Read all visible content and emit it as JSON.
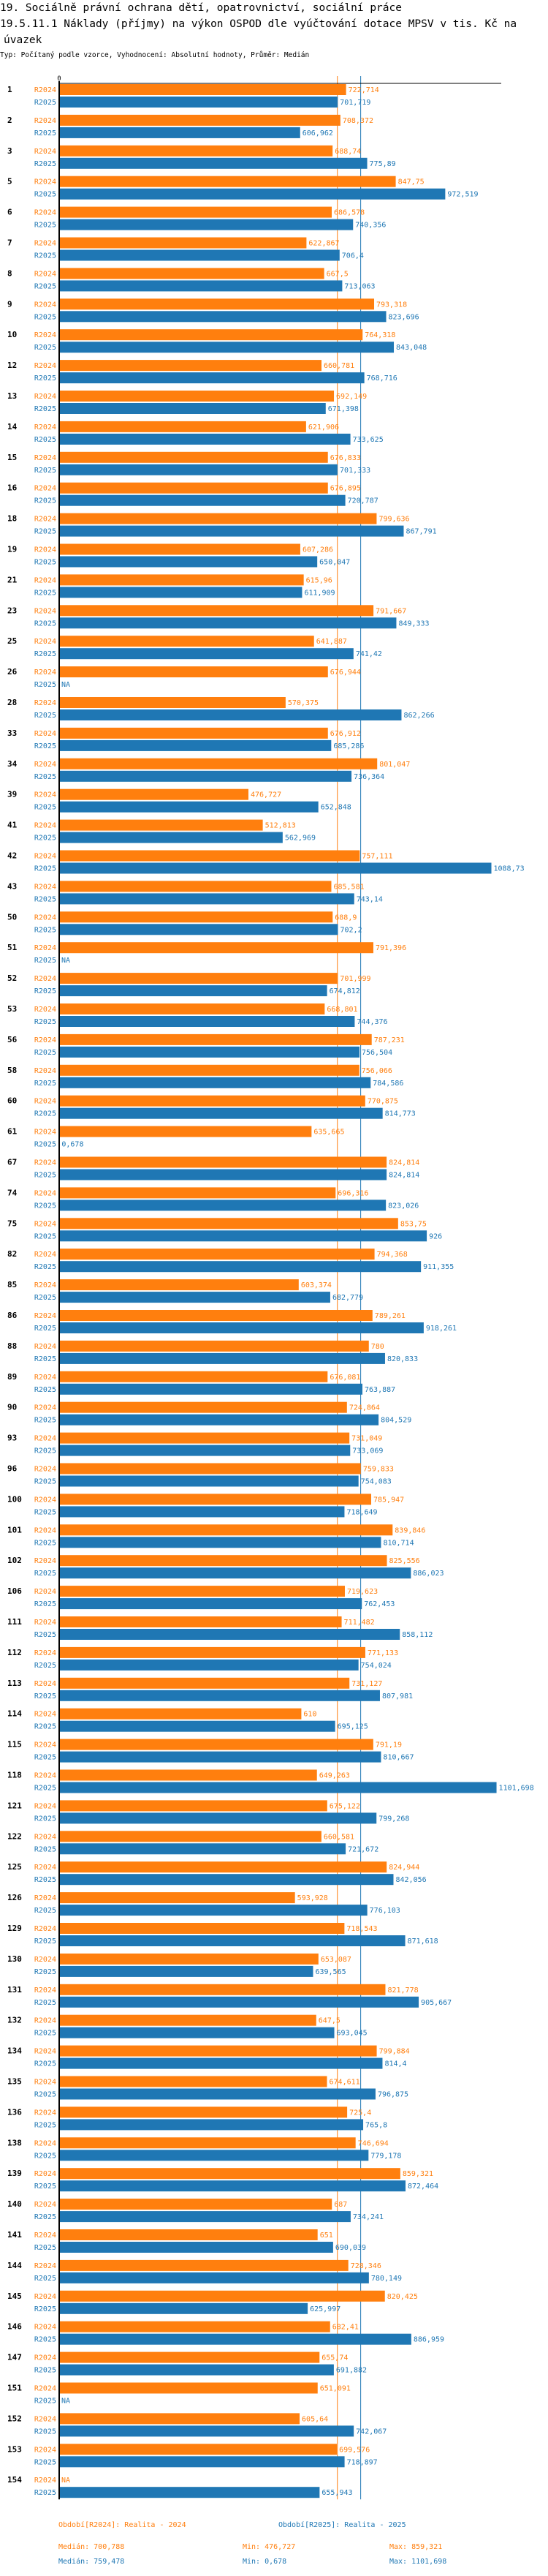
{
  "header": {
    "section_title": "19. Sociálně právní ochrana dětí, opatrovnictví, sociální práce",
    "indicator_title_line1": "19.5.11.1 Náklady (příjmy) na výkon OSPOD dle vyúčtování dotace MPSV v tis. Kč na",
    "indicator_title_line2": "úvazek",
    "subtitle": "Typ: Počítaný podle vzorce, Vyhodnocení: Absolutní hodnoty, Průměr: Medián"
  },
  "chart_data": {
    "type": "bar",
    "orientation": "horizontal",
    "title": "19.5.11.1 Náklady (příjmy) na výkon OSPOD dle vyúčtování dotace MPSV v tis. Kč na úvazek",
    "xlabel": "",
    "ylabel": "",
    "xlim": [
      0,
      1101.698
    ],
    "x_tick_labels": [
      "0"
    ],
    "grid": false,
    "decimal_separator": ",",
    "colors": {
      "R2024": "#ff7f0e",
      "R2025": "#1f77b4"
    },
    "categories": [
      "1",
      "2",
      "3",
      "5",
      "6",
      "7",
      "8",
      "9",
      "10",
      "12",
      "13",
      "14",
      "15",
      "16",
      "18",
      "19",
      "21",
      "23",
      "25",
      "26",
      "28",
      "33",
      "34",
      "39",
      "41",
      "42",
      "43",
      "50",
      "51",
      "52",
      "53",
      "56",
      "58",
      "60",
      "61",
      "67",
      "74",
      "75",
      "82",
      "85",
      "86",
      "88",
      "89",
      "90",
      "93",
      "96",
      "100",
      "101",
      "102",
      "106",
      "111",
      "112",
      "113",
      "114",
      "115",
      "118",
      "121",
      "122",
      "125",
      "126",
      "129",
      "130",
      "131",
      "132",
      "134",
      "135",
      "136",
      "138",
      "139",
      "140",
      "141",
      "144",
      "145",
      "146",
      "147",
      "151",
      "152",
      "153",
      "154"
    ],
    "series": [
      {
        "name": "R2024",
        "values": [
          722.714,
          708.372,
          688.74,
          847.75,
          686.578,
          622.867,
          667.5,
          793.318,
          764.318,
          660.781,
          692.149,
          621.906,
          676.833,
          676.895,
          799.636,
          607.286,
          615.96,
          791.667,
          641.887,
          676.944,
          570.375,
          676.912,
          801.047,
          476.727,
          512.813,
          757.111,
          685.581,
          688.9,
          791.396,
          701.999,
          668.801,
          787.231,
          756.066,
          770.875,
          635.665,
          824.814,
          696.316,
          853.75,
          794.368,
          603.374,
          789.261,
          780,
          676.081,
          724.864,
          731.049,
          759.833,
          785.947,
          839.846,
          825.556,
          719.623,
          711.482,
          771.133,
          731.127,
          610,
          791.19,
          649.263,
          675.122,
          660.581,
          824.944,
          593.928,
          718.543,
          653.087,
          821.778,
          647.5,
          799.884,
          674.611,
          725.4,
          746.694,
          859.321,
          687,
          651,
          728.346,
          820.425,
          682.41,
          655.74,
          651.091,
          605.64,
          699.576,
          null
        ],
        "value_labels": [
          "722,714",
          "708,372",
          "688,74",
          "847,75",
          "686,578",
          "622,867",
          "667,5",
          "793,318",
          "764,318",
          "660,781",
          "692,149",
          "621,906",
          "676,833",
          "676,895",
          "799,636",
          "607,286",
          "615,96",
          "791,667",
          "641,887",
          "676,944",
          "570,375",
          "676,912",
          "801,047",
          "476,727",
          "512,813",
          "757,111",
          "685,581",
          "688,9",
          "791,396",
          "701,999",
          "668,801",
          "787,231",
          "756,066",
          "770,875",
          "635,665",
          "824,814",
          "696,316",
          "853,75",
          "794,368",
          "603,374",
          "789,261",
          "780",
          "676,081",
          "724,864",
          "731,049",
          "759,833",
          "785,947",
          "839,846",
          "825,556",
          "719,623",
          "711,482",
          "771,133",
          "731,127",
          "610",
          "791,19",
          "649,263",
          "675,122",
          "660,581",
          "824,944",
          "593,928",
          "718,543",
          "653,087",
          "821,778",
          "647,5",
          "799,884",
          "674,611",
          "725,4",
          "746,694",
          "859,321",
          "687",
          "651",
          "728,346",
          "820,425",
          "682,41",
          "655,74",
          "651,091",
          "605,64",
          "699,576",
          "NA"
        ],
        "median": 700.788,
        "min": 476.727,
        "max": 859.321
      },
      {
        "name": "R2025",
        "values": [
          701.719,
          606.962,
          775.89,
          972.519,
          740.356,
          706.4,
          713.063,
          823.696,
          843.048,
          768.716,
          671.398,
          733.625,
          701.333,
          720.787,
          867.791,
          650.047,
          611.909,
          849.333,
          741.42,
          null,
          862.266,
          685.286,
          736.364,
          652.848,
          562.969,
          1088.73,
          743.14,
          702.2,
          null,
          674.812,
          744.376,
          756.504,
          784.586,
          814.773,
          0.678,
          824.814,
          823.026,
          926,
          911.355,
          682.779,
          918.261,
          820.833,
          763.887,
          804.529,
          733.069,
          754.083,
          718.649,
          810.714,
          886.023,
          762.453,
          858.112,
          754.024,
          807.981,
          695.125,
          810.667,
          1101.698,
          799.268,
          721.672,
          842.056,
          776.103,
          871.618,
          639.565,
          905.667,
          693.045,
          814.4,
          796.875,
          765.8,
          779.178,
          872.464,
          734.241,
          690.039,
          780.149,
          625.997,
          886.959,
          691.882,
          null,
          742.067,
          718.897,
          655.943
        ],
        "value_labels": [
          "701,719",
          "606,962",
          "775,89",
          "972,519",
          "740,356",
          "706,4",
          "713,063",
          "823,696",
          "843,048",
          "768,716",
          "671,398",
          "733,625",
          "701,333",
          "720,787",
          "867,791",
          "650,047",
          "611,909",
          "849,333",
          "741,42",
          "NA",
          "862,266",
          "685,286",
          "736,364",
          "652,848",
          "562,969",
          "1088,73",
          "743,14",
          "702,2",
          "NA",
          "674,812",
          "744,376",
          "756,504",
          "784,586",
          "814,773",
          "0,678",
          "824,814",
          "823,026",
          "926",
          "911,355",
          "682,779",
          "918,261",
          "820,833",
          "763,887",
          "804,529",
          "733,069",
          "754,083",
          "718,649",
          "810,714",
          "886,023",
          "762,453",
          "858,112",
          "754,024",
          "807,981",
          "695,125",
          "810,667",
          "1101,698",
          "799,268",
          "721,672",
          "842,056",
          "776,103",
          "871,618",
          "639,565",
          "905,667",
          "693,045",
          "814,4",
          "796,875",
          "765,8",
          "779,178",
          "872,464",
          "734,241",
          "690,039",
          "780,149",
          "625,997",
          "886,959",
          "691,882",
          "NA",
          "742,067",
          "718,897",
          "655,943"
        ],
        "median": 759.478,
        "min": 0.678,
        "max": 1101.698
      }
    ],
    "reference_lines": [
      {
        "series": "R2024",
        "kind": "median",
        "value": 700.788
      },
      {
        "series": "R2025",
        "kind": "median",
        "value": 759.478
      }
    ],
    "legend": {
      "placement": "bottom",
      "entries": [
        {
          "series": "R2024",
          "text": "Období[R2024]: Realita - 2024"
        },
        {
          "series": "R2025",
          "text": "Období[R2025]: Realita - 2025"
        }
      ]
    }
  },
  "summary": {
    "r2024": {
      "median": "Medián: 700,788",
      "min": "Min: 476,727",
      "max": "Max: 859,321"
    },
    "r2025": {
      "median": "Medián: 759,478",
      "min": "Min: 0,678",
      "max": "Max: 1101,698"
    }
  }
}
